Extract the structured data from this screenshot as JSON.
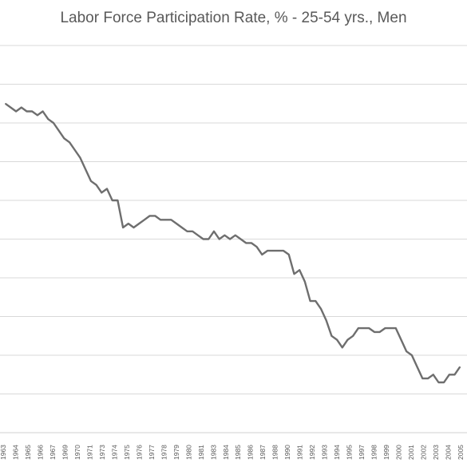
{
  "chart_data": {
    "type": "line",
    "title": "Labor Force Participation Rate, % - 25-54 yrs., Men",
    "xlabel": "",
    "ylabel": "",
    "grid": "horizontal",
    "legend": "none",
    "line_color": "#6e6e6e",
    "grid_color": "#d9d9d9",
    "tick_labels": [
      "1963",
      "1964",
      "1965",
      "1966",
      "1967",
      "1969",
      "1970",
      "1971",
      "1973",
      "1974",
      "1975",
      "1976",
      "1977",
      "1978",
      "1979",
      "1980",
      "1981",
      "1983",
      "1984",
      "1985",
      "1986",
      "1987",
      "1988",
      "1990",
      "1991",
      "1992",
      "1993",
      "1994",
      "1995",
      "1997",
      "1998",
      "1999",
      "2000",
      "2001",
      "2002",
      "2003",
      "2004",
      "2005"
    ],
    "y_gridlines": 10,
    "series": [
      {
        "x": [
          1963.0,
          1963.5,
          1964.0,
          1964.5,
          1965.0,
          1965.5,
          1966.0,
          1966.5,
          1967.0,
          1967.5,
          1968.0,
          1968.5,
          1969.0,
          1969.5,
          1970.0,
          1970.5,
          1971.0,
          1971.5,
          1972.0,
          1972.5,
          1973.0,
          1973.5,
          1974.0,
          1974.5,
          1975.0,
          1975.5,
          1976.0,
          1976.5,
          1977.0,
          1977.5,
          1978.0,
          1978.5,
          1979.0,
          1979.5,
          1980.0,
          1980.5,
          1981.0,
          1981.5,
          1982.0,
          1982.5,
          1983.0,
          1983.5,
          1984.0,
          1984.5,
          1985.0,
          1985.5,
          1986.0,
          1986.5,
          1987.0,
          1987.5,
          1988.0,
          1988.5,
          1989.0,
          1989.5,
          1990.0,
          1990.5,
          1991.0,
          1991.5,
          1992.0,
          1992.5,
          1993.0,
          1993.5,
          1994.0,
          1994.5,
          1995.0,
          1995.5,
          1996.0,
          1996.5,
          1997.0,
          1997.5,
          1998.0,
          1998.5,
          1999.0,
          1999.5,
          2000.0,
          2000.5,
          2001.0,
          2001.5,
          2002.0,
          2002.5,
          2003.0,
          2003.5,
          2004.0,
          2004.5,
          2005.0,
          2005.5
        ],
        "values": [
          96.9,
          96.8,
          96.7,
          96.8,
          96.7,
          96.7,
          96.6,
          96.7,
          96.5,
          96.4,
          96.2,
          96.0,
          95.9,
          95.7,
          95.5,
          95.2,
          94.9,
          94.8,
          94.6,
          94.7,
          94.4,
          94.4,
          93.7,
          93.8,
          93.7,
          93.8,
          93.9,
          94.0,
          94.0,
          93.9,
          93.9,
          93.9,
          93.8,
          93.7,
          93.6,
          93.6,
          93.5,
          93.4,
          93.4,
          93.6,
          93.4,
          93.5,
          93.4,
          93.5,
          93.4,
          93.3,
          93.3,
          93.2,
          93.0,
          93.1,
          93.1,
          93.1,
          93.1,
          93.0,
          92.5,
          92.6,
          92.3,
          91.8,
          91.8,
          91.6,
          91.3,
          90.9,
          90.8,
          90.6,
          90.8,
          90.9,
          91.1,
          91.1,
          91.1,
          91.0,
          91.0,
          91.1,
          91.1,
          91.1,
          90.8,
          90.5,
          90.4,
          90.1,
          89.8,
          89.8,
          89.9,
          89.7,
          89.7,
          89.9,
          89.9,
          90.1
        ]
      }
    ]
  }
}
